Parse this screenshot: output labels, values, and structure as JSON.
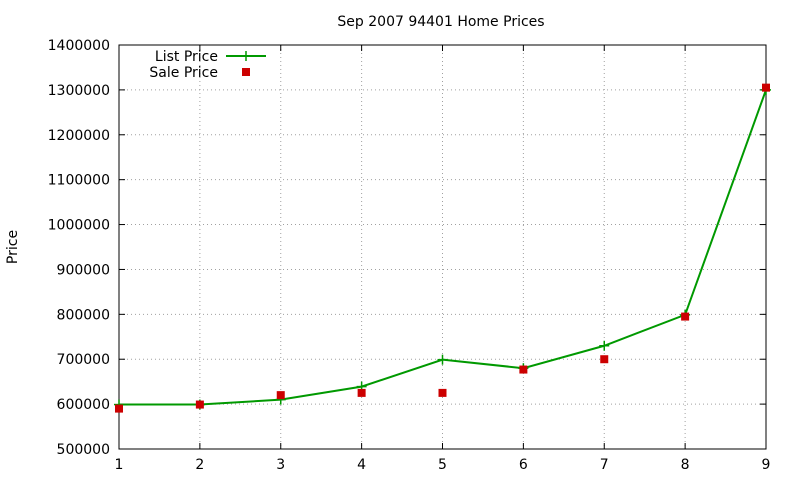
{
  "chart_data": {
    "type": "line",
    "title": "Sep 2007 94401 Home Prices",
    "ylabel": "Price",
    "x": [
      1,
      2,
      3,
      4,
      5,
      6,
      7,
      8,
      9
    ],
    "xlim": [
      1,
      9
    ],
    "ylim": [
      500000,
      1400000
    ],
    "yticks": [
      500000,
      600000,
      700000,
      800000,
      900000,
      1000000,
      1100000,
      1200000,
      1300000,
      1400000
    ],
    "grid": true,
    "legend_position": "top-left",
    "series": [
      {
        "name": "List Price",
        "style": "line-plus",
        "color": "#009900",
        "values": [
          599000,
          599000,
          610000,
          639000,
          699000,
          680000,
          730000,
          799000,
          1300000
        ]
      },
      {
        "name": "Sale Price",
        "style": "square-marker",
        "color": "#cc0000",
        "values": [
          590000,
          599000,
          620000,
          625000,
          625000,
          677000,
          700000,
          795000,
          1305000
        ]
      }
    ]
  }
}
